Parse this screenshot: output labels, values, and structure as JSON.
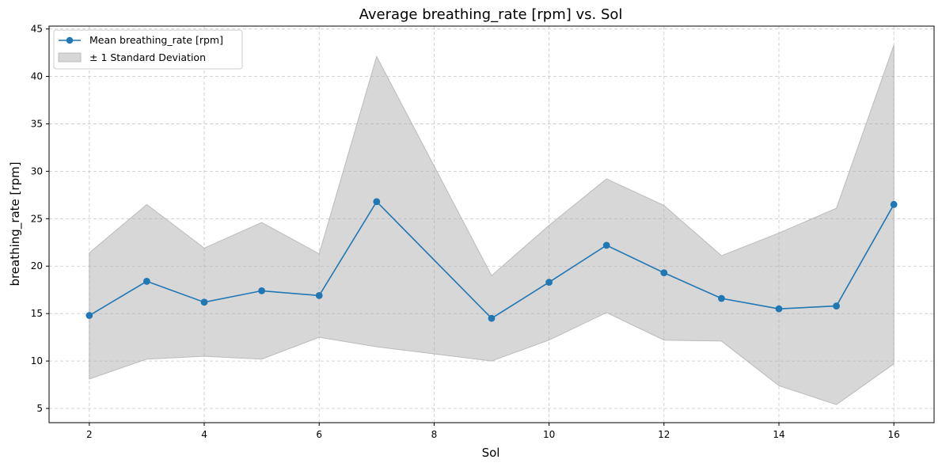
{
  "chart_data": {
    "type": "line",
    "title": "Average breathing_rate [rpm] vs. Sol",
    "xlabel": "Sol",
    "ylabel": "breathing_rate [rpm]",
    "xlim": [
      1.3,
      16.7
    ],
    "ylim": [
      3.5,
      45.3
    ],
    "xticks": [
      2,
      4,
      6,
      8,
      10,
      12,
      14,
      16
    ],
    "yticks": [
      5,
      10,
      15,
      20,
      25,
      30,
      35,
      40,
      45
    ],
    "grid": true,
    "legend_position": "top-left",
    "x": [
      2,
      3,
      4,
      5,
      6,
      7,
      9,
      10,
      11,
      12,
      13,
      14,
      15,
      16
    ],
    "series": [
      {
        "name": "Mean breathing_rate [rpm]",
        "color": "#1f77b4",
        "values": [
          14.8,
          18.4,
          16.2,
          17.4,
          16.9,
          26.8,
          14.5,
          18.3,
          22.2,
          19.3,
          16.6,
          15.5,
          15.8,
          26.5
        ]
      }
    ],
    "band": {
      "name": "± 1 Standard Deviation",
      "color": "#b0b0b0",
      "upper": [
        21.4,
        26.5,
        21.9,
        24.6,
        21.3,
        42.1,
        19.0,
        24.3,
        29.2,
        26.4,
        21.1,
        23.5,
        26.1,
        43.3
      ],
      "lower": [
        8.1,
        10.2,
        10.5,
        10.2,
        12.5,
        11.5,
        10.0,
        12.2,
        15.1,
        12.2,
        12.1,
        7.4,
        5.4,
        9.7
      ]
    }
  }
}
